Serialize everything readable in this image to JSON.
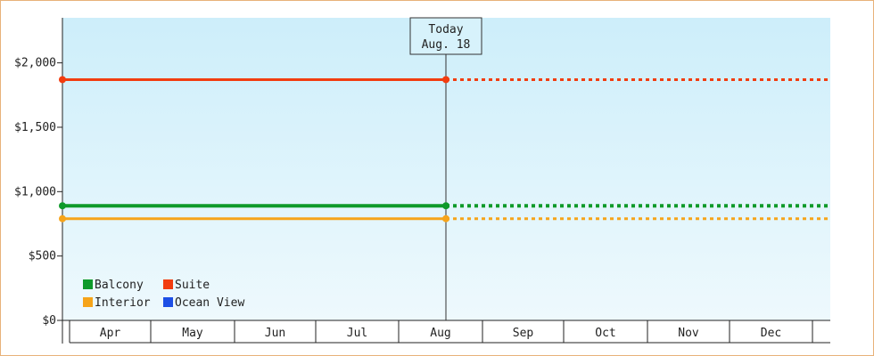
{
  "chart_data": {
    "type": "line",
    "title": "",
    "xlabel": "",
    "ylabel": "",
    "categories": [
      "Apr",
      "May",
      "Jun",
      "Jul",
      "Aug",
      "Sep",
      "Oct",
      "Nov",
      "Dec"
    ],
    "ylim": [
      0,
      2350
    ],
    "y_ticks": [
      {
        "value": 0,
        "label": "$0"
      },
      {
        "value": 500,
        "label": "$500"
      },
      {
        "value": 1000,
        "label": "$1,000"
      },
      {
        "value": 1500,
        "label": "$1,500"
      },
      {
        "value": 2000,
        "label": "$2,000"
      }
    ],
    "today_marker": {
      "title": "Today",
      "date": "Aug. 18",
      "month_position": 4.0
    },
    "series": [
      {
        "name": "Balcony",
        "color": "#0e9a2a",
        "value": 890,
        "solid_until": 4.0
      },
      {
        "name": "Suite",
        "color": "#f23c0f",
        "value": 1870,
        "solid_until": 4.0
      },
      {
        "name": "Interior",
        "color": "#f6a41a",
        "value": 790,
        "solid_until": 4.0
      },
      {
        "name": "Ocean View",
        "color": "#1d4fe6",
        "value": null,
        "solid_until": 4.0
      }
    ],
    "legend": {
      "position": "bottom-left",
      "columns": 2
    },
    "background_gradient": [
      "#cdeefa",
      "#eef9fd"
    ],
    "grid": false
  }
}
